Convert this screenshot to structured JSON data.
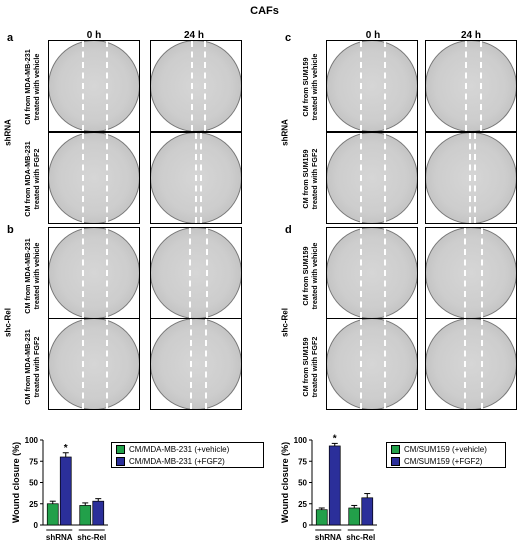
{
  "figure_title": "CAFs",
  "time_headers": [
    "0 h",
    "24 h"
  ],
  "panels": {
    "a": {
      "letter": "a",
      "group_label": "shRNA",
      "rows": [
        [
          "CM from MDA-MB-231",
          "treated with vehicle"
        ],
        [
          "CM from MDA-MB-231",
          "treated with FGF2"
        ]
      ]
    },
    "b": {
      "letter": "b",
      "group_label": "shc-Rel",
      "rows": [
        [
          "CM from MDA-MB-231",
          "treated with vehicle"
        ],
        [
          "CM from MDA-MB-231",
          "treated with FGF2"
        ]
      ]
    },
    "c": {
      "letter": "c",
      "group_label": "shRNA",
      "rows": [
        [
          "CM from SUM159",
          "treated with vehicle"
        ],
        [
          "CM from SUM159",
          "treated with FGF2"
        ]
      ]
    },
    "d": {
      "letter": "d",
      "group_label": "shc-Rel",
      "rows": [
        [
          "CM from SUM159",
          "treated with vehicle"
        ],
        [
          "CM from SUM159",
          "treated with FGF2"
        ]
      ]
    }
  },
  "colors": {
    "vehicle": "#22a04a",
    "fgf2": "#2b2f9a"
  },
  "chart_data": [
    {
      "type": "bar",
      "ylabel": "Wound closure (%)",
      "xlabel": "",
      "ylim": [
        0,
        100
      ],
      "yticks": [
        0,
        25,
        50,
        75,
        100
      ],
      "categories": [
        "shRNA",
        "shc-Rel"
      ],
      "series": [
        {
          "name": "CM/MDA-MB-231 (+vehicle)",
          "values": [
            25,
            23
          ],
          "errors": [
            3,
            3
          ],
          "color": "#22a04a"
        },
        {
          "name": "CM/MDA-MB-231 (+FGF2)",
          "values": [
            80,
            28
          ],
          "errors": [
            5,
            3
          ],
          "color": "#2b2f9a"
        }
      ],
      "annotations": [
        {
          "text": "*",
          "category": "shRNA",
          "series": 1
        }
      ],
      "legend": "top-right",
      "grid": false
    },
    {
      "type": "bar",
      "ylabel": "Wound closure (%)",
      "xlabel": "",
      "ylim": [
        0,
        100
      ],
      "yticks": [
        0,
        25,
        50,
        75,
        100
      ],
      "categories": [
        "shRNA",
        "shc-Rel"
      ],
      "series": [
        {
          "name": "CM/SUM159 (+vehicle)",
          "values": [
            18,
            20
          ],
          "errors": [
            2,
            3
          ],
          "color": "#22a04a"
        },
        {
          "name": "CM/SUM159 (+FGF2)",
          "values": [
            93,
            32
          ],
          "errors": [
            3,
            5
          ],
          "color": "#2b2f9a"
        }
      ],
      "annotations": [
        {
          "text": "*",
          "category": "shRNA",
          "series": 1
        }
      ],
      "legend": "top-right",
      "grid": false
    }
  ]
}
